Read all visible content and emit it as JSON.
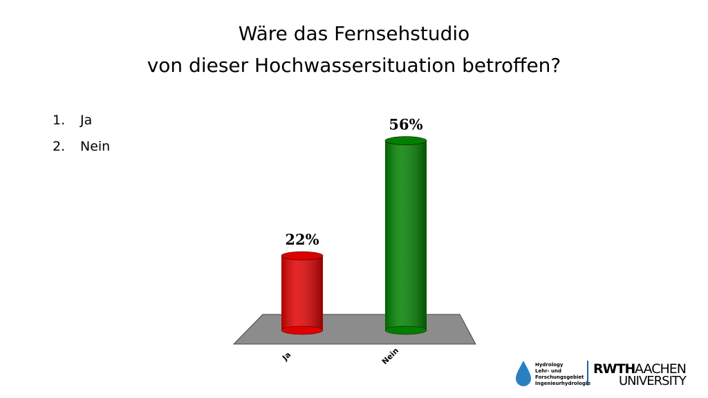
{
  "slide": {
    "title_lines": [
      "Wäre das Fernsehstudio",
      "von dieser Hochwassersituation betroffen?"
    ],
    "list": [
      {
        "marker": "1.",
        "text": "Ja"
      },
      {
        "marker": "2.",
        "text": "Nein"
      }
    ],
    "logo_left": [
      "Hydrology",
      "Lehr- und",
      "Forschungsgebiet",
      "Ingenieurhydrologie"
    ],
    "logo_right": {
      "brand": "RWTH",
      "city": "AACHEN",
      "university": "UNIVERSITY"
    }
  },
  "chart_data": {
    "type": "bar",
    "categories": [
      "Ja",
      "Nein"
    ],
    "values": [
      22,
      56
    ],
    "value_labels": [
      "22%",
      "56%"
    ],
    "colors": [
      "#e00000",
      "#008000"
    ]
  }
}
